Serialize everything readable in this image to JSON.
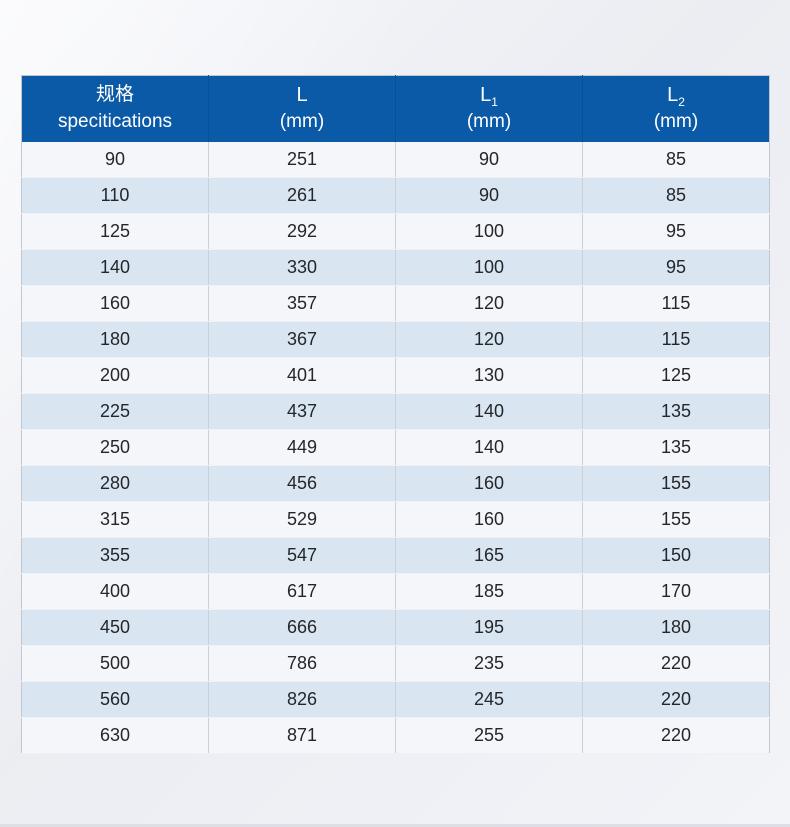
{
  "table": {
    "header": [
      {
        "line1": "规格",
        "line2": "specitications"
      },
      {
        "symbol": "L",
        "sub": "",
        "unit": "(mm)"
      },
      {
        "symbol": "L",
        "sub": "1",
        "unit": "(mm)"
      },
      {
        "symbol": "L",
        "sub": "2",
        "unit": "(mm)"
      }
    ],
    "rows": [
      [
        "90",
        "251",
        "90",
        "85"
      ],
      [
        "110",
        "261",
        "90",
        "85"
      ],
      [
        "125",
        "292",
        "100",
        "95"
      ],
      [
        "140",
        "330",
        "100",
        "95"
      ],
      [
        "160",
        "357",
        "120",
        "115"
      ],
      [
        "180",
        "367",
        "120",
        "115"
      ],
      [
        "200",
        "401",
        "130",
        "125"
      ],
      [
        "225",
        "437",
        "140",
        "135"
      ],
      [
        "250",
        "449",
        "140",
        "135"
      ],
      [
        "280",
        "456",
        "160",
        "155"
      ],
      [
        "315",
        "529",
        "160",
        "155"
      ],
      [
        "355",
        "547",
        "165",
        "150"
      ],
      [
        "400",
        "617",
        "185",
        "170"
      ],
      [
        "450",
        "666",
        "195",
        "180"
      ],
      [
        "500",
        "786",
        "235",
        "220"
      ],
      [
        "560",
        "826",
        "245",
        "220"
      ],
      [
        "630",
        "871",
        "255",
        "220"
      ]
    ]
  },
  "colors": {
    "header_bg": "#0b5aa7",
    "header_border": "#0a4e93",
    "header_text": "#ffffff",
    "row_light": "#f4f6fa",
    "row_blue": "#d9e5f1",
    "cell_border_v": "#c9d0d9",
    "cell_border_h": "#eef1f5",
    "table_outline": "#bfc7d1",
    "data_text": "#23272c"
  }
}
